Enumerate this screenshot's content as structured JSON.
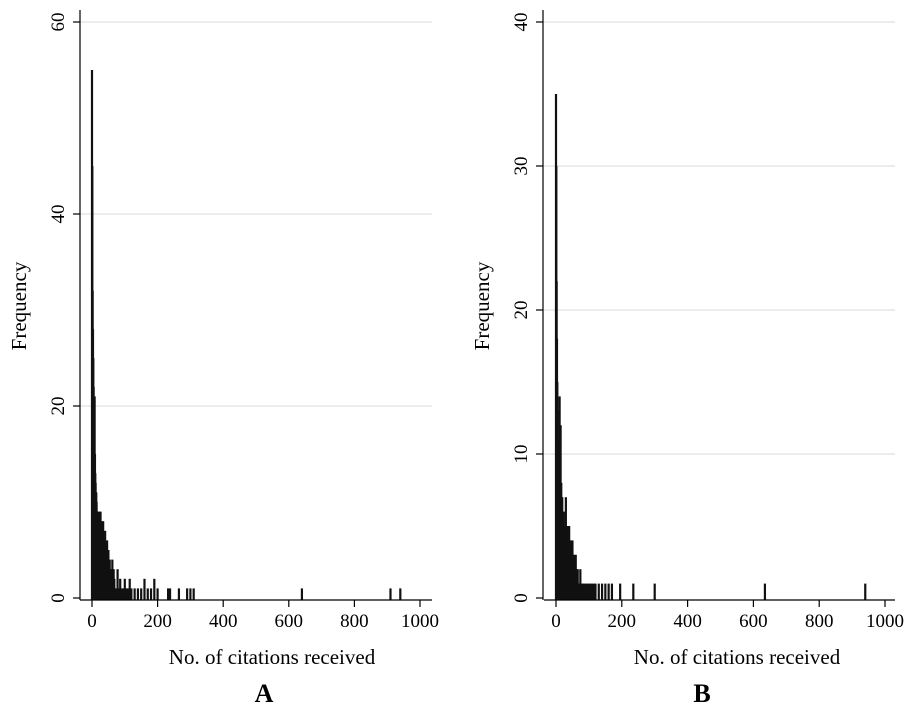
{
  "chart_data": [
    {
      "type": "bar",
      "panel": "A",
      "xlabel": "No. of citations received",
      "ylabel": "Frequency",
      "xlim": [
        0,
        1000
      ],
      "ylim": [
        0,
        60
      ],
      "x_ticks": [
        "0",
        "200",
        "400",
        "600",
        "800",
        "1000"
      ],
      "y_ticks": [
        "0",
        "20",
        "40",
        "60"
      ],
      "grid": true,
      "x": [
        0,
        1,
        2,
        3,
        4,
        5,
        6,
        7,
        8,
        9,
        10,
        11,
        12,
        13,
        14,
        15,
        16,
        17,
        18,
        19,
        20,
        22,
        24,
        26,
        28,
        30,
        32,
        34,
        36,
        38,
        40,
        42,
        44,
        46,
        48,
        50,
        52,
        54,
        56,
        58,
        60,
        62,
        64,
        66,
        68,
        70,
        74,
        78,
        82,
        86,
        90,
        95,
        100,
        105,
        110,
        115,
        120,
        130,
        140,
        150,
        160,
        170,
        180,
        190,
        200,
        232,
        238,
        265,
        290,
        300,
        310,
        640,
        910,
        940
      ],
      "values": [
        55,
        45,
        32,
        28,
        25,
        22,
        20,
        17,
        21,
        15,
        13,
        12,
        11,
        11,
        10,
        9,
        9,
        8,
        8,
        7,
        9,
        8,
        6,
        9,
        7,
        8,
        6,
        8,
        5,
        6,
        7,
        5,
        4,
        6,
        4,
        5,
        3,
        4,
        3,
        3,
        2,
        4,
        2,
        3,
        2,
        1,
        1,
        3,
        1,
        2,
        1,
        1,
        2,
        1,
        1,
        2,
        1,
        1,
        1,
        1,
        2,
        1,
        1,
        2,
        1,
        1,
        1,
        1,
        1,
        1,
        1,
        1,
        1,
        1
      ]
    },
    {
      "type": "bar",
      "panel": "B",
      "xlabel": "No. of citations received",
      "ylabel": "Frequency",
      "xlim": [
        0,
        1000
      ],
      "ylim": [
        0,
        40
      ],
      "x_ticks": [
        "0",
        "200",
        "400",
        "600",
        "800",
        "1000"
      ],
      "y_ticks": [
        "0",
        "10",
        "20",
        "30",
        "40"
      ],
      "grid": true,
      "x": [
        0,
        1,
        2,
        3,
        4,
        5,
        6,
        7,
        8,
        9,
        10,
        11,
        12,
        13,
        14,
        15,
        16,
        17,
        18,
        19,
        20,
        22,
        24,
        26,
        28,
        30,
        32,
        34,
        36,
        38,
        40,
        42,
        44,
        46,
        48,
        50,
        52,
        54,
        56,
        58,
        60,
        62,
        64,
        66,
        68,
        70,
        74,
        78,
        82,
        86,
        90,
        95,
        100,
        105,
        110,
        115,
        120,
        130,
        140,
        150,
        160,
        170,
        195,
        235,
        300,
        635,
        940
      ],
      "values": [
        35,
        30,
        22,
        18,
        15,
        13,
        11,
        10,
        9,
        8,
        7,
        14,
        9,
        7,
        12,
        6,
        8,
        5,
        6,
        7,
        5,
        6,
        4,
        5,
        6,
        7,
        5,
        4,
        5,
        4,
        5,
        3,
        4,
        3,
        2,
        4,
        3,
        2,
        3,
        2,
        3,
        2,
        1,
        2,
        1,
        1,
        2,
        1,
        1,
        1,
        1,
        1,
        1,
        1,
        1,
        1,
        1,
        1,
        1,
        1,
        1,
        1,
        1,
        1,
        1,
        1,
        1
      ]
    }
  ],
  "panels": {
    "a": {
      "letter": "A",
      "ylabel": "Frequency",
      "xlabel": "No. of citations received"
    },
    "b": {
      "letter": "B",
      "ylabel": "Frequency",
      "xlabel": "No. of citations received"
    }
  }
}
